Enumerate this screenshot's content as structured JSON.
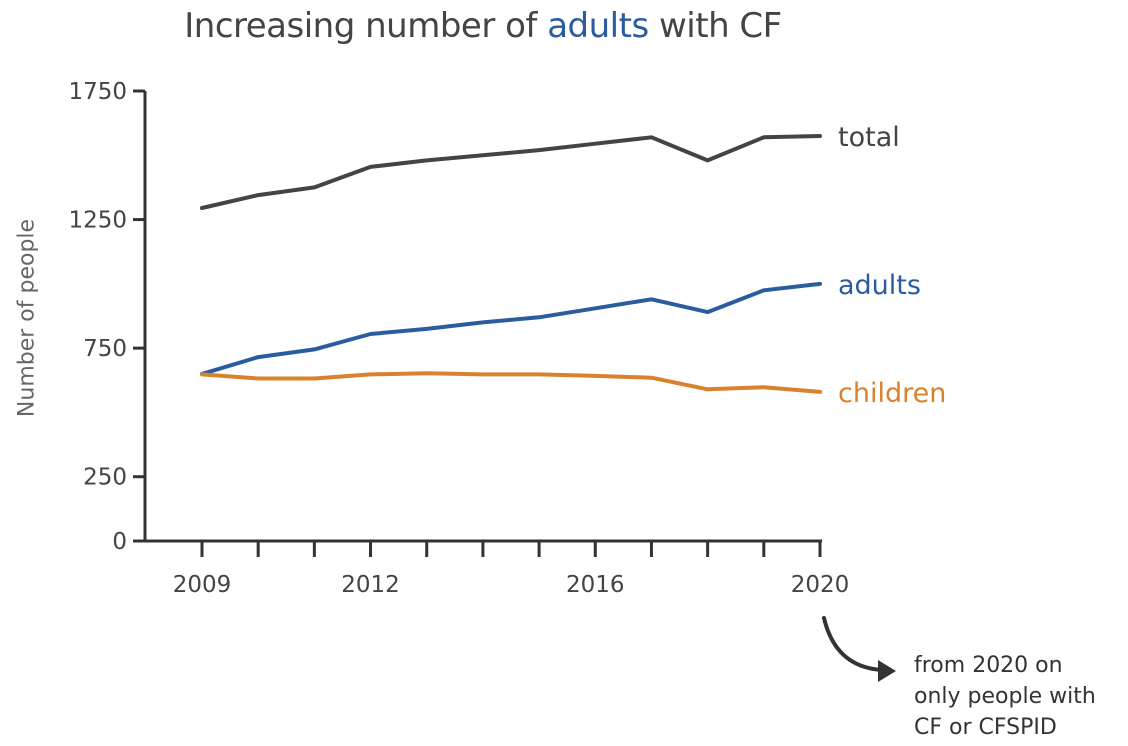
{
  "title": {
    "prefix": "Increasing number of ",
    "highlight": "adults",
    "suffix": " with CF"
  },
  "note": {
    "lines": [
      "from 2020 on",
      "only people with",
      "CF or CFSPID"
    ]
  },
  "colors": {
    "total": "#444444",
    "adults": "#2a5d9f",
    "children": "#d9822b",
    "axis": "#333333"
  },
  "chart_data": {
    "type": "line",
    "title": "Increasing number of adults with CF",
    "xlabel": "",
    "ylabel": "Number of people",
    "x": [
      2009,
      2010,
      2011,
      2012,
      2013,
      2014,
      2015,
      2016,
      2017,
      2018,
      2019,
      2020
    ],
    "xticks": [
      2009,
      2012,
      2016,
      2020
    ],
    "yticks": [
      0,
      250,
      750,
      1250,
      1750
    ],
    "ylim": [
      0,
      1750
    ],
    "xlim": [
      2009,
      2020
    ],
    "series": [
      {
        "name": "total",
        "values": [
          1295,
          1345,
          1375,
          1455,
          1480,
          1500,
          1520,
          1545,
          1570,
          1480,
          1570,
          1575
        ]
      },
      {
        "name": "adults",
        "values": [
          650,
          715,
          745,
          805,
          825,
          850,
          870,
          905,
          940,
          890,
          975,
          1000
        ]
      },
      {
        "name": "children",
        "values": [
          648,
          632,
          632,
          648,
          652,
          648,
          648,
          642,
          635,
          590,
          598,
          580
        ]
      }
    ],
    "grid": false,
    "legend": "direct labels at line ends",
    "annotation": "from 2020 on only people with CF or CFSPID"
  }
}
